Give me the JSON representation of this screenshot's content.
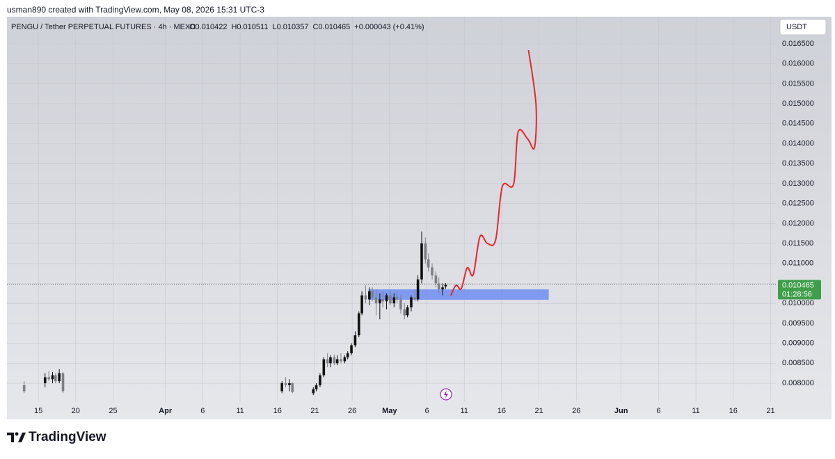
{
  "header": {
    "credit": "usman890 created with TradingView.com, May 08, 2026 15:31 UTC-3"
  },
  "chart_data": {
    "type": "candlestick",
    "title": "PENGU / Tether PERPETUAL FUTURES · 4h · MEXC",
    "ohlc_text": [
      "O0.010422",
      "H0.010511",
      "L0.010357",
      "C0.010465",
      "+0.000043 (+0.41%)"
    ],
    "currency": "USDT",
    "up_color": "#111111",
    "down_color": "#7d7f85",
    "x": [
      72.1,
      74.9,
      75.4,
      75.9,
      76.3,
      76.8,
      77.3,
      106.6,
      107.1,
      107.6,
      108.0,
      110.8,
      111.2,
      111.7,
      112.2,
      112.7,
      113.1,
      113.6,
      114.0,
      114.5,
      115.0,
      115.4,
      115.9,
      116.4,
      116.9,
      117.3,
      117.8,
      118.3,
      118.7,
      119.2,
      119.7,
      120.1,
      120.6,
      121.1,
      121.6,
      122.0,
      122.5,
      123.0,
      123.4,
      123.9,
      124.4,
      124.8,
      125.3,
      125.8,
      126.2,
      126.7,
      127.2,
      127.6,
      128.1,
      128.5
    ],
    "open": [
      0.00795,
      0.008,
      0.00815,
      0.0081,
      0.0082,
      0.00805,
      0.00825,
      0.0078,
      0.008,
      0.00795,
      0.008,
      0.00775,
      0.00785,
      0.00795,
      0.0082,
      0.0086,
      0.0085,
      0.00865,
      0.0085,
      0.0086,
      0.00855,
      0.00865,
      0.00875,
      0.00895,
      0.0092,
      0.00975,
      0.0102,
      0.0101,
      0.0103,
      0.01015,
      0.01,
      0.0101,
      0.01005,
      0.0102,
      0.01,
      0.01015,
      0.0101,
      0.00985,
      0.0097,
      0.0099,
      0.01015,
      0.0101,
      0.0106,
      0.0115,
      0.0111,
      0.0109,
      0.0107,
      0.0105,
      0.01035,
      0.010422
    ],
    "high": [
      0.00805,
      0.00825,
      0.0083,
      0.00828,
      0.00825,
      0.00835,
      0.00828,
      0.00805,
      0.00815,
      0.0081,
      0.00802,
      0.0079,
      0.008,
      0.00825,
      0.00865,
      0.00875,
      0.0087,
      0.00872,
      0.0087,
      0.00875,
      0.0087,
      0.0088,
      0.009,
      0.0093,
      0.0098,
      0.0103,
      0.01045,
      0.0104,
      0.0104,
      0.01035,
      0.01025,
      0.0103,
      0.01025,
      0.0103,
      0.01025,
      0.0103,
      0.0102,
      0.01,
      0.00995,
      0.0102,
      0.01035,
      0.0107,
      0.0118,
      0.01165,
      0.01125,
      0.011,
      0.0108,
      0.01065,
      0.0105,
      0.010511
    ],
    "low": [
      0.00775,
      0.0079,
      0.00805,
      0.008,
      0.008,
      0.008,
      0.00775,
      0.00775,
      0.0079,
      0.0078,
      0.00775,
      0.0077,
      0.0078,
      0.0079,
      0.00815,
      0.0084,
      0.0084,
      0.00845,
      0.00845,
      0.0085,
      0.0085,
      0.0086,
      0.0087,
      0.0089,
      0.00915,
      0.0097,
      0.01,
      0.00995,
      0.01005,
      0.0097,
      0.0096,
      0.0099,
      0.00985,
      0.00995,
      0.0099,
      0.01,
      0.00975,
      0.0096,
      0.00965,
      0.0098,
      0.01005,
      0.01005,
      0.0105,
      0.011,
      0.0108,
      0.0106,
      0.0104,
      0.01025,
      0.0102,
      0.010357
    ],
    "close": [
      0.0078,
      0.00815,
      0.0081,
      0.0082,
      0.00805,
      0.00825,
      0.0078,
      0.008,
      0.00795,
      0.008,
      0.00778,
      0.00785,
      0.00795,
      0.0082,
      0.0086,
      0.0085,
      0.00865,
      0.0085,
      0.0086,
      0.00855,
      0.00865,
      0.00875,
      0.00895,
      0.0092,
      0.00975,
      0.0102,
      0.0101,
      0.0103,
      0.01015,
      0.01,
      0.0101,
      0.01005,
      0.0102,
      0.01,
      0.01015,
      0.0101,
      0.00985,
      0.0097,
      0.0099,
      0.01015,
      0.0101,
      0.0106,
      0.0115,
      0.0111,
      0.0109,
      0.0107,
      0.0105,
      0.01035,
      0.0104,
      0.010465
    ],
    "xlim": [
      69.8,
      172.7
    ],
    "xticks": [
      {
        "value": 74,
        "label": "15"
      },
      {
        "value": 79,
        "label": "20"
      },
      {
        "value": 84,
        "label": "25"
      },
      {
        "value": 91,
        "label": "Apr"
      },
      {
        "value": 96,
        "label": "6"
      },
      {
        "value": 101,
        "label": "11"
      },
      {
        "value": 106,
        "label": "16"
      },
      {
        "value": 111,
        "label": "21"
      },
      {
        "value": 116,
        "label": "26"
      },
      {
        "value": 121,
        "label": "May"
      },
      {
        "value": 126,
        "label": "6"
      },
      {
        "value": 131,
        "label": "11"
      },
      {
        "value": 136,
        "label": "16"
      },
      {
        "value": 141,
        "label": "21"
      },
      {
        "value": 146,
        "label": "26"
      },
      {
        "value": 152,
        "label": "Jun"
      },
      {
        "value": 157,
        "label": "6"
      },
      {
        "value": 162,
        "label": "11"
      },
      {
        "value": 167,
        "label": "16"
      },
      {
        "value": 172,
        "label": "21"
      }
    ],
    "ylim": [
      0.00753,
      0.017179
    ],
    "yticks": [
      {
        "value": 0.008,
        "label": "0.008000"
      },
      {
        "value": 0.0085,
        "label": "0.008500"
      },
      {
        "value": 0.009,
        "label": "0.009000"
      },
      {
        "value": 0.0095,
        "label": "0.009500"
      },
      {
        "value": 0.01,
        "label": "0.010000"
      },
      {
        "value": 0.0105,
        "label": "0.010500"
      },
      {
        "value": 0.011,
        "label": "0.011000"
      },
      {
        "value": 0.0115,
        "label": "0.011500"
      },
      {
        "value": 0.012,
        "label": "0.012000"
      },
      {
        "value": 0.0125,
        "label": "0.012500"
      },
      {
        "value": 0.013,
        "label": "0.013000"
      },
      {
        "value": 0.0135,
        "label": "0.013500"
      },
      {
        "value": 0.014,
        "label": "0.014000"
      },
      {
        "value": 0.0145,
        "label": "0.014500"
      },
      {
        "value": 0.015,
        "label": "0.015000"
      },
      {
        "value": 0.0155,
        "label": "0.015500"
      },
      {
        "value": 0.016,
        "label": "0.016000"
      },
      {
        "value": 0.0165,
        "label": "0.016500"
      }
    ],
    "grid": true,
    "last_price": 0.010465,
    "last_price_color": "#3f9e4a",
    "countdown": "01:28:56",
    "box": {
      "x": [
        118.2,
        142.3
      ],
      "y": [
        0.01009,
        0.01035
      ],
      "color": "#6f8df0"
    },
    "projection": {
      "x": [
        129.2,
        129.9,
        130.6,
        131.4,
        132.2,
        133.1,
        134.1,
        135.2,
        136.1,
        137.6,
        138.2,
        139.5,
        140.4,
        140.6,
        139.6
      ],
      "y": [
        0.010194,
        0.010455,
        0.010368,
        0.010891,
        0.010717,
        0.011674,
        0.0115,
        0.011588,
        0.012929,
        0.012981,
        0.014288,
        0.014113,
        0.013904,
        0.014984,
        0.016343
      ],
      "color": "#e5262a"
    }
  },
  "footer": {
    "brand": "TradingView"
  }
}
